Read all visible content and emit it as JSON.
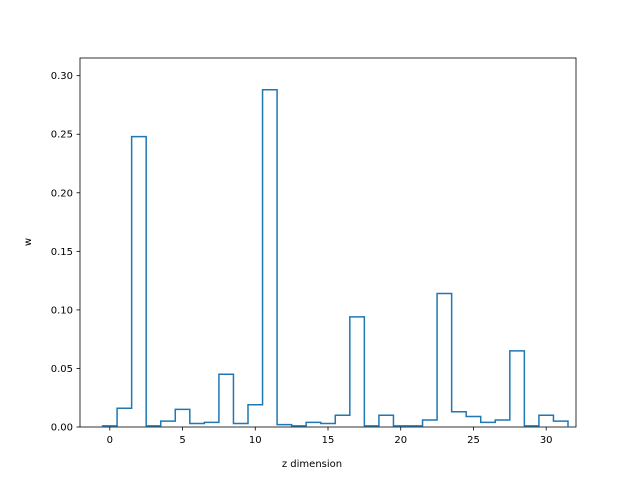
{
  "chart_data": {
    "type": "line",
    "style": "step-outline",
    "title": "",
    "xlabel": "z dimension",
    "ylabel": "w",
    "xlim": [
      -2.05,
      32.05
    ],
    "ylim": [
      0,
      0.3151
    ],
    "x_ticks": [
      0,
      5,
      10,
      15,
      20,
      25,
      30
    ],
    "y_ticks": [
      0.0,
      0.05,
      0.1,
      0.15,
      0.2,
      0.25,
      0.3
    ],
    "x_tick_labels": [
      "0",
      "5",
      "10",
      "15",
      "20",
      "25",
      "30"
    ],
    "y_tick_labels": [
      "0.00",
      "0.05",
      "0.10",
      "0.15",
      "0.20",
      "0.25",
      "0.30"
    ],
    "grid": false,
    "legend": "none",
    "series_color": "#1f77b4",
    "categories": [
      0,
      1,
      2,
      3,
      4,
      5,
      6,
      7,
      8,
      9,
      10,
      11,
      12,
      13,
      14,
      15,
      16,
      17,
      18,
      19,
      20,
      21,
      22,
      23,
      24,
      25,
      26,
      27,
      28,
      29,
      30,
      31
    ],
    "values": [
      0.001,
      0.016,
      0.248,
      0.001,
      0.005,
      0.015,
      0.003,
      0.004,
      0.045,
      0.003,
      0.019,
      0.288,
      0.002,
      0.001,
      0.004,
      0.003,
      0.01,
      0.094,
      0.001,
      0.01,
      0.001,
      0.001,
      0.006,
      0.114,
      0.013,
      0.009,
      0.004,
      0.006,
      0.065,
      0.001,
      0.01,
      0.005
    ]
  }
}
